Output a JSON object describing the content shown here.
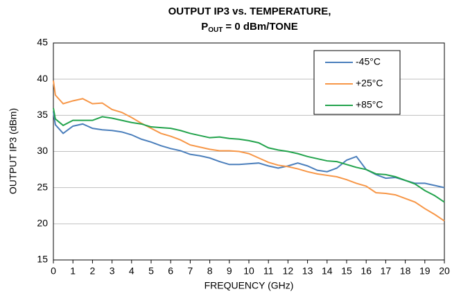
{
  "chart_data": {
    "type": "line",
    "title": "OUTPUT IP3 vs. TEMPERATURE,",
    "subtitle_parts": {
      "base": "P",
      "sub": "OUT",
      "rest": "= 0 dBm/TONE"
    },
    "x_label": "FREQUENCY (GHz)",
    "y_label": "OUTPUT IP3 (dBm)",
    "x": [
      0,
      0.1,
      0.5,
      1,
      1.5,
      2,
      2.5,
      3,
      3.5,
      4,
      4.5,
      5,
      5.5,
      6,
      6.5,
      7,
      7.5,
      8,
      8.5,
      9,
      9.5,
      10,
      10.5,
      11,
      11.5,
      12,
      12.5,
      13,
      13.5,
      14,
      14.5,
      15,
      15.5,
      16,
      16.5,
      17,
      17.5,
      18,
      18.5,
      19,
      19.5,
      20
    ],
    "series": [
      {
        "name": "-45°C",
        "color": "#4a7ebb",
        "values": [
          35.5,
          33.7,
          32.5,
          33.5,
          33.8,
          33.2,
          33.0,
          32.9,
          32.7,
          32.3,
          31.7,
          31.3,
          30.8,
          30.4,
          30.1,
          29.6,
          29.4,
          29.1,
          28.6,
          28.2,
          28.2,
          28.3,
          28.4,
          28.0,
          27.7,
          28.0,
          28.4,
          28.0,
          27.4,
          27.2,
          27.7,
          28.8,
          29.3,
          27.5,
          26.8,
          26.3,
          26.4,
          26.0,
          25.6,
          25.6,
          25.3,
          25.0
        ]
      },
      {
        "name": "+25°C",
        "color": "#f79646",
        "values": [
          39.8,
          37.8,
          36.6,
          37.0,
          37.3,
          36.6,
          36.7,
          35.8,
          35.4,
          34.7,
          33.9,
          33.2,
          32.5,
          32.1,
          31.6,
          30.9,
          30.6,
          30.3,
          30.1,
          30.1,
          30.0,
          29.7,
          29.1,
          28.5,
          28.1,
          27.9,
          27.6,
          27.2,
          26.9,
          26.7,
          26.5,
          26.1,
          25.6,
          25.2,
          24.3,
          24.2,
          24.0,
          23.5,
          23.0,
          22.1,
          21.3,
          20.4
        ]
      },
      {
        "name": "+85°C",
        "color": "#22a34c",
        "values": [
          36.0,
          34.5,
          33.6,
          34.3,
          34.3,
          34.3,
          34.8,
          34.6,
          34.3,
          34.0,
          33.8,
          33.4,
          33.3,
          33.2,
          32.9,
          32.5,
          32.2,
          31.9,
          32.0,
          31.8,
          31.7,
          31.5,
          31.2,
          30.5,
          30.2,
          30.0,
          29.7,
          29.3,
          29.0,
          28.7,
          28.6,
          28.2,
          27.8,
          27.5,
          26.9,
          26.8,
          26.5,
          26.0,
          25.5,
          24.6,
          23.9,
          23.0
        ]
      }
    ],
    "xlim": [
      0,
      20
    ],
    "xticks": [
      0,
      1,
      2,
      3,
      4,
      5,
      6,
      7,
      8,
      9,
      10,
      11,
      12,
      13,
      14,
      15,
      16,
      17,
      18,
      19,
      20
    ],
    "ylim": [
      15,
      45
    ],
    "yticks": [
      15,
      20,
      25,
      30,
      35,
      40,
      45
    ],
    "grid": true,
    "legend": "upper right"
  }
}
